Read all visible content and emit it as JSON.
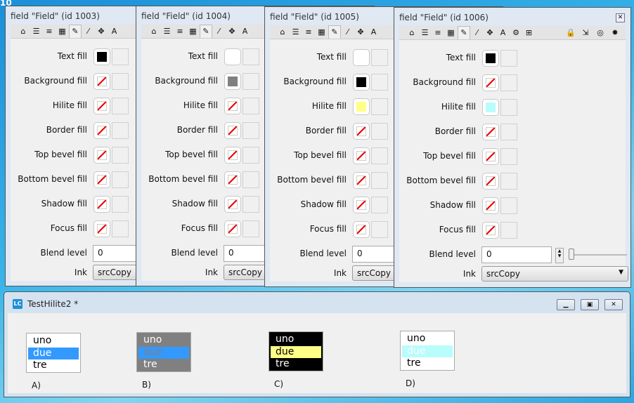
{
  "desktop": {
    "label": "10"
  },
  "inspectors": [
    {
      "title": "field \"Field\" (id 1003)",
      "text_fill": "#000000",
      "background_fill": null,
      "hilite_fill": null,
      "blend_level": "0",
      "ink": "srcCopy"
    },
    {
      "title": "field \"Field\" (id 1004)",
      "text_fill": "#ffffff",
      "background_fill": "#808080",
      "hilite_fill": null,
      "blend_level": "0",
      "ink": "srcCopy"
    },
    {
      "title": "field \"Field\" (id 1005)",
      "text_fill": "#ffffff",
      "background_fill": "#000000",
      "hilite_fill": "#ffff88",
      "blend_level": "0",
      "ink": "srcCopy"
    },
    {
      "title": "field \"Field\" (id 1006)",
      "text_fill": "#000000",
      "background_fill": null,
      "hilite_fill": "#b8fcfc",
      "blend_level": "0",
      "ink": "srcCopy"
    }
  ],
  "labels": {
    "text_fill": "Text fill",
    "background_fill": "Background fill",
    "hilite_fill": "Hilite fill",
    "border_fill": "Border fill",
    "top_bevel_fill": "Top bevel fill",
    "bottom_bevel_fill": "Bottom bevel fill",
    "shadow_fill": "Shadow fill",
    "focus_fill": "Focus fill",
    "blend_level": "Blend level",
    "ink": "Ink"
  },
  "toolbar_icons": [
    "home-icon",
    "list-icon",
    "database-icon",
    "table-icon",
    "pencil-icon",
    "magic-wand-icon",
    "move-icon",
    "text-icon"
  ],
  "toolbar_icons_extra": [
    "gears-icon",
    "geometry-icon",
    "lock-icon",
    "import-icon",
    "target-icon",
    "settings-icon"
  ],
  "stack_window": {
    "title": "TestHilite2 *",
    "logo": "LC",
    "lists": [
      {
        "caption": "A)",
        "items": [
          "uno",
          "due",
          "tre"
        ],
        "bg": "#ffffff",
        "fg": "#000000",
        "hilite_bg": "#3399ff",
        "hilite_fg": "#ffffff"
      },
      {
        "caption": "B)",
        "items": [
          "uno",
          "due",
          "tre"
        ],
        "bg": "#808080",
        "fg": "#ffffff",
        "hilite_bg": "#3399ff",
        "hilite_fg": "#808080"
      },
      {
        "caption": "C)",
        "items": [
          "uno",
          "due",
          "tre"
        ],
        "bg": "#000000",
        "fg": "#ffffff",
        "hilite_bg": "#ffff88",
        "hilite_fg": "#000000"
      },
      {
        "caption": "D)",
        "items": [
          "uno",
          "due",
          "tre"
        ],
        "bg": "#ffffff",
        "fg": "#000000",
        "hilite_bg": "#b8fcfc",
        "hilite_fg": "#ffffff"
      }
    ]
  }
}
